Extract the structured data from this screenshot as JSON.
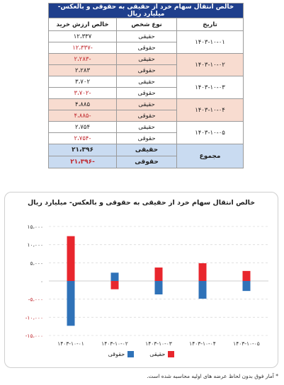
{
  "table": {
    "title": "خالص انتقال سهام خرد از حقیقی به حقوقی و بالعکس- میلیارد ریال",
    "headers": {
      "date": "تاریخ",
      "type": "نوع شخص",
      "value": "خالص ارزش خرید"
    },
    "type_labels": {
      "real": "حقیقی",
      "legal": "حقوقی"
    },
    "rows": [
      {
        "date": "۱۴۰۳-۱۰-۰۱",
        "real": "۱۲،۳۳۷",
        "legal": "-۱۲،۳۳۷",
        "real_neg": false,
        "legal_neg": true,
        "shaded": false
      },
      {
        "date": "۱۴۰۳-۱۰-۰۲",
        "real": "-۲،۲۸۳",
        "legal": "۲،۲۸۳",
        "real_neg": true,
        "legal_neg": false,
        "shaded": true
      },
      {
        "date": "۱۴۰۳-۱۰-۰۳",
        "real": "۳،۷۰۲",
        "legal": "-۳،۷۰۲",
        "real_neg": false,
        "legal_neg": true,
        "shaded": false
      },
      {
        "date": "۱۴۰۳-۱۰-۰۴",
        "real": "۴،۸۸۵",
        "legal": "-۴،۸۸۵",
        "real_neg": false,
        "legal_neg": true,
        "shaded": true
      },
      {
        "date": "۱۴۰۳-۱۰-۰۵",
        "real": "۲،۷۵۴",
        "legal": "-۲،۷۵۴",
        "real_neg": false,
        "legal_neg": true,
        "shaded": false
      }
    ],
    "total": {
      "label": "مجموع",
      "real": "۲۱،۳۹۶",
      "legal": "-۲۱،۳۹۶"
    }
  },
  "chart_data": {
    "type": "bar",
    "title": "خالص انتقال سهام خرد از حقیقی به حقوقی و بالعکس- میلیارد ریال",
    "categories": [
      "۱۴۰۳-۱۰-۰۱",
      "۱۴۰۳-۱۰-۰۲",
      "۱۴۰۳-۱۰-۰۳",
      "۱۴۰۳-۱۰-۰۴",
      "۱۴۰۳-۱۰-۰۵"
    ],
    "series": [
      {
        "name": "حقیقی",
        "color": "#e8262d",
        "values": [
          12337,
          -2283,
          3702,
          4885,
          2754
        ]
      },
      {
        "name": "حقوقی",
        "color": "#2f72b8",
        "values": [
          -12337,
          2283,
          -3702,
          -4885,
          -2754
        ]
      }
    ],
    "ylim": [
      -15000,
      15000
    ],
    "yticks": [
      {
        "value": 15000,
        "label": "۱۵،۰۰۰"
      },
      {
        "value": 10000,
        "label": "۱۰،۰۰۰"
      },
      {
        "value": 5000,
        "label": "۵،۰۰۰"
      },
      {
        "value": 0,
        "label": "۰"
      },
      {
        "value": -5000,
        "label": "-۵،۰۰۰"
      },
      {
        "value": -10000,
        "label": "-۱۰،۰۰۰"
      },
      {
        "value": -15000,
        "label": "-۱۵،۰۰۰"
      }
    ],
    "stacked": true,
    "grid": "horizontal-dashed",
    "legend": "bottom"
  },
  "footnote": "* آمار فوق بدون لحاظ عرضه های اولیه محاسبه شده است.",
  "colors": {
    "header": "#1f3f8c",
    "shade": "#f8dcd0",
    "total": "#c9dbf1",
    "negative": "#c0272d"
  }
}
